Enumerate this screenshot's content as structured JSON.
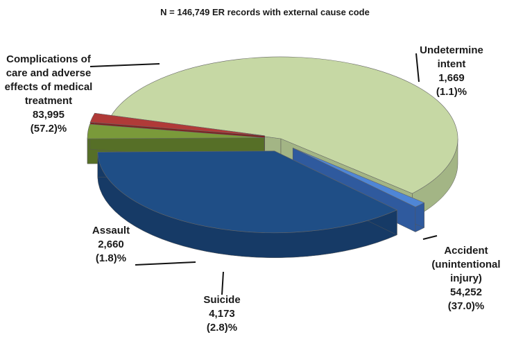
{
  "chart_data": {
    "type": "pie",
    "title": "N = 146,749  ER records with external cause code",
    "slices": [
      {
        "label_lines": [
          "Complications of",
          "care and adverse",
          "effects of medical",
          "treatment"
        ],
        "count_text": "83,995",
        "pct_text": "(57.2)%",
        "value": 83995,
        "percent": 57.2,
        "color": "#c6d8a4",
        "side": "#a3b585",
        "exploded": false
      },
      {
        "label_lines": [
          "Undetermine",
          "intent"
        ],
        "count_text": "1,669",
        "pct_text": "(1.1)%",
        "value": 1669,
        "percent": 1.1,
        "color": "#4f86d6",
        "side": "#2f5a9e",
        "exploded": true
      },
      {
        "label_lines": [
          "Accident",
          "(unintentional",
          "injury)"
        ],
        "count_text": "54,252",
        "pct_text": "(37.0)%",
        "value": 54252,
        "percent": 37.0,
        "color": "#1f4e86",
        "side": "#163a66",
        "exploded": true
      },
      {
        "label_lines": [
          "Suicide"
        ],
        "count_text": "4,173",
        "pct_text": "(2.8)%",
        "value": 4173,
        "percent": 2.8,
        "color": "#7a9a3a",
        "side": "#566f27",
        "exploded": true
      },
      {
        "label_lines": [
          "Assault"
        ],
        "count_text": "2,660",
        "pct_text": "(1.8)%",
        "value": 2660,
        "percent": 1.8,
        "color": "#b03a38",
        "side": "#7d2322",
        "exploded": true
      }
    ]
  }
}
